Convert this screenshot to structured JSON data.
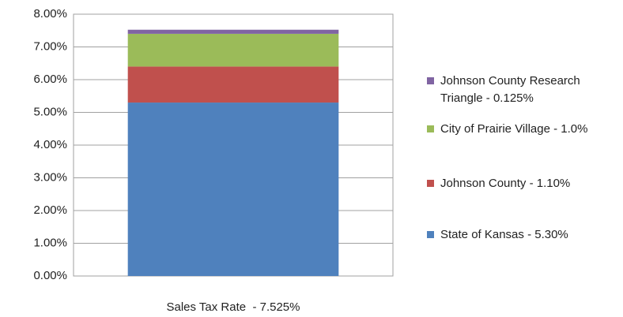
{
  "chart_data": {
    "type": "stacked_bar",
    "categories": [
      "Sales Tax Rate  - 7.525%"
    ],
    "series": [
      {
        "name": "State of Kansas - 5.30%",
        "color": "#4f81bd",
        "values": [
          5.3
        ]
      },
      {
        "name": "Johnson County - 1.10%",
        "color": "#c0504d",
        "values": [
          1.1
        ]
      },
      {
        "name": "City of Prairie Village - 1.0%",
        "color": "#9bbb59",
        "values": [
          1.0
        ]
      },
      {
        "name": "Johnson County Research Triangle - 0.125%",
        "color": "#8064a2",
        "values": [
          0.125
        ]
      }
    ],
    "ylim": [
      0,
      8
    ],
    "yticks": [
      {
        "value": 0,
        "label": "0.00%"
      },
      {
        "value": 1,
        "label": "1.00%"
      },
      {
        "value": 2,
        "label": "2.00%"
      },
      {
        "value": 3,
        "label": "3.00%"
      },
      {
        "value": 4,
        "label": "4.00%"
      },
      {
        "value": 5,
        "label": "5.00%"
      },
      {
        "value": 6,
        "label": "6.00%"
      },
      {
        "value": 7,
        "label": "7.00%"
      },
      {
        "value": 8,
        "label": "8.00%"
      }
    ],
    "grid": true,
    "legend": "right"
  }
}
